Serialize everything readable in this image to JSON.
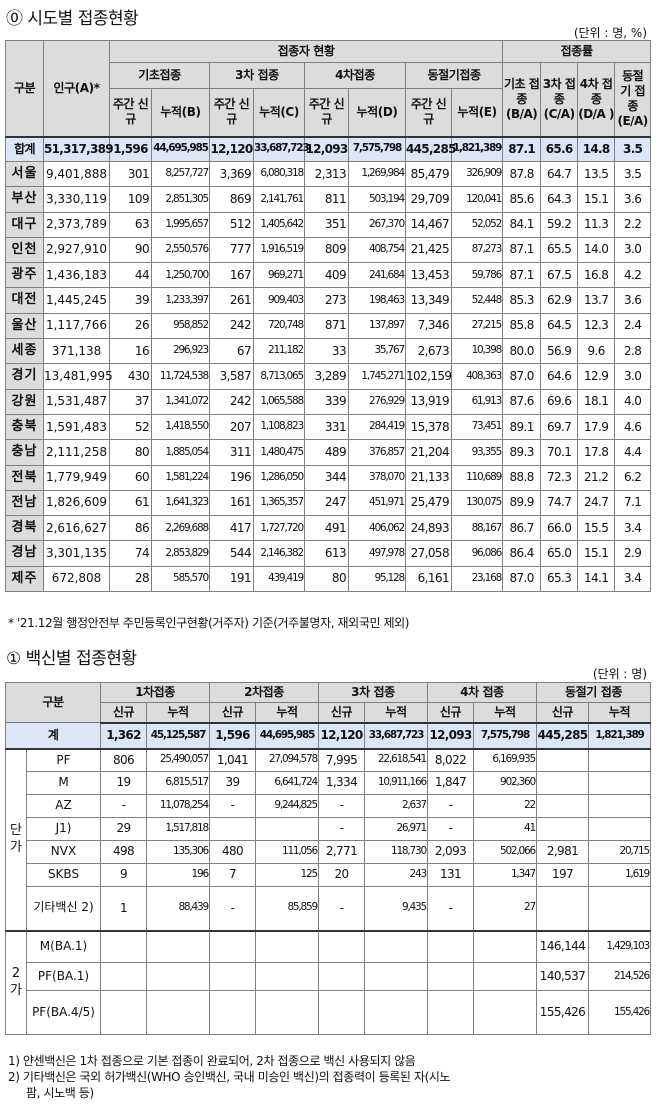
{
  "section1": {
    "title": "⓪ 시도별 접종현황",
    "unit": "(단위 : 명, %)",
    "headers": {
      "gubun": "구분",
      "population": "인구(A)*",
      "status_group": "접종자 현황",
      "rate_group": "접종률",
      "basic": "기초접종",
      "dose3": "3차 접종",
      "dose4": "4차접종",
      "winter": "동절기접종",
      "weekly_new": "주간 신규",
      "cum_b": "누적(B)",
      "cum_c": "누적(C)",
      "cum_d": "누적(D)",
      "cum_e": "누적(E)",
      "rate_basic": "기초 접종 (B/A)",
      "rate_3": "3차 접종 (C/A)",
      "rate_4": "4차 접종 (D/A )",
      "rate_w": "동절 기 접종 (E/A)"
    },
    "total": [
      "합계",
      "51,317,389",
      "1,596",
      "44,695,985",
      "12,120",
      "33,687,723",
      "12,093",
      "7,575,798",
      "445,285",
      "1,821,389",
      "87.1",
      "65.6",
      "14.8",
      "3.5"
    ],
    "rows": [
      [
        "서울",
        "9,401,888",
        "301",
        "8,257,727",
        "3,369",
        "6,080,318",
        "2,313",
        "1,269,984",
        "85,479",
        "326,909",
        "87.8",
        "64.7",
        "13.5",
        "3.5"
      ],
      [
        "부산",
        "3,330,119",
        "109",
        "2,851,305",
        "869",
        "2,141,761",
        "811",
        "503,194",
        "29,709",
        "120,041",
        "85.6",
        "64.3",
        "15.1",
        "3.6"
      ],
      [
        "대구",
        "2,373,789",
        "63",
        "1,995,657",
        "512",
        "1,405,642",
        "351",
        "267,370",
        "14,467",
        "52,052",
        "84.1",
        "59.2",
        "11.3",
        "2.2"
      ],
      [
        "인천",
        "2,927,910",
        "90",
        "2,550,576",
        "777",
        "1,916,519",
        "809",
        "408,754",
        "21,425",
        "87,273",
        "87.1",
        "65.5",
        "14.0",
        "3.0"
      ],
      [
        "광주",
        "1,436,183",
        "44",
        "1,250,700",
        "167",
        "969,271",
        "409",
        "241,684",
        "13,453",
        "59,786",
        "87.1",
        "67.5",
        "16.8",
        "4.2"
      ],
      [
        "대전",
        "1,445,245",
        "39",
        "1,233,397",
        "261",
        "909,403",
        "273",
        "198,463",
        "13,349",
        "52,448",
        "85.3",
        "62.9",
        "13.7",
        "3.6"
      ],
      [
        "울산",
        "1,117,766",
        "26",
        "958,852",
        "242",
        "720,748",
        "871",
        "137,897",
        "7,346",
        "27,215",
        "85.8",
        "64.5",
        "12.3",
        "2.4"
      ],
      [
        "세종",
        "371,138",
        "16",
        "296,923",
        "67",
        "211,182",
        "33",
        "35,767",
        "2,673",
        "10,398",
        "80.0",
        "56.9",
        "9.6",
        "2.8"
      ],
      [
        "경기",
        "13,481,995",
        "430",
        "11,724,538",
        "3,587",
        "8,713,065",
        "3,289",
        "1,745,271",
        "102,159",
        "408,363",
        "87.0",
        "64.6",
        "12.9",
        "3.0"
      ],
      [
        "강원",
        "1,531,487",
        "37",
        "1,341,072",
        "242",
        "1,065,588",
        "339",
        "276,929",
        "13,919",
        "61,913",
        "87.6",
        "69.6",
        "18.1",
        "4.0"
      ],
      [
        "충북",
        "1,591,483",
        "52",
        "1,418,550",
        "207",
        "1,108,823",
        "331",
        "284,419",
        "15,378",
        "73,451",
        "89.1",
        "69.7",
        "17.9",
        "4.6"
      ],
      [
        "충남",
        "2,111,258",
        "80",
        "1,885,054",
        "311",
        "1,480,475",
        "489",
        "376,857",
        "21,204",
        "93,355",
        "89.3",
        "70.1",
        "17.8",
        "4.4"
      ],
      [
        "전북",
        "1,779,949",
        "60",
        "1,581,224",
        "196",
        "1,286,050",
        "344",
        "378,070",
        "21,133",
        "110,689",
        "88.8",
        "72.3",
        "21.2",
        "6.2"
      ],
      [
        "전남",
        "1,826,609",
        "61",
        "1,641,323",
        "161",
        "1,365,357",
        "247",
        "451,971",
        "25,479",
        "130,075",
        "89.9",
        "74.7",
        "24.7",
        "7.1"
      ],
      [
        "경북",
        "2,616,627",
        "86",
        "2,269,688",
        "417",
        "1,727,720",
        "491",
        "406,062",
        "24,893",
        "88,167",
        "86.7",
        "66.0",
        "15.5",
        "3.4"
      ],
      [
        "경남",
        "3,301,135",
        "74",
        "2,853,829",
        "544",
        "2,146,382",
        "613",
        "497,978",
        "27,058",
        "96,086",
        "86.4",
        "65.0",
        "15.1",
        "2.9"
      ],
      [
        "제주",
        "672,808",
        "28",
        "585,570",
        "191",
        "439,419",
        "80",
        "95,128",
        "6,161",
        "23,168",
        "87.0",
        "65.3",
        "14.1",
        "3.4"
      ]
    ],
    "note": "* '21.12월 행정안전부 주민등록인구현황(거주자) 기준(거주불명자, 재외국민 제외)"
  },
  "section2": {
    "title": "① 백신별 접종현황",
    "unit": "(단위 : 명)",
    "headers": {
      "gubun": "구분",
      "dose1": "1차접종",
      "dose2": "2차접종",
      "dose3": "3차 접종",
      "dose4": "4차 접종",
      "winter": "동절기 접종",
      "new": "신규",
      "cum": "누적"
    },
    "total": [
      "계",
      "1,362",
      "45,125,587",
      "1,596",
      "44,695,985",
      "12,120",
      "33,687,723",
      "12,093",
      "7,575,798",
      "445,285",
      "1,821,389"
    ],
    "group1_label": "단 가",
    "group1": [
      [
        "PF",
        "806",
        "25,490,057",
        "1,041",
        "27,094,578",
        "7,995",
        "22,618,541",
        "8,022",
        "6,169,935",
        "",
        ""
      ],
      [
        "M",
        "19",
        "6,815,517",
        "39",
        "6,641,724",
        "1,334",
        "10,911,166",
        "1,847",
        "902,360",
        "",
        ""
      ],
      [
        "AZ",
        "-",
        "11,078,254",
        "-",
        "9,244,825",
        "-",
        "2,637",
        "-",
        "22",
        "",
        ""
      ],
      [
        "J1)",
        "29",
        "1,517,818",
        "",
        "",
        "-",
        "26,971",
        "-",
        "41",
        "",
        ""
      ],
      [
        "NVX",
        "498",
        "135,306",
        "480",
        "111,056",
        "2,771",
        "118,730",
        "2,093",
        "502,066",
        "2,981",
        "20,715"
      ],
      [
        "SKBS",
        "9",
        "196",
        "7",
        "125",
        "20",
        "243",
        "131",
        "1,347",
        "197",
        "1,619"
      ],
      [
        "기타백신 2)",
        "1",
        "88,439",
        "-",
        "85,859",
        "-",
        "9,435",
        "-",
        "27",
        "",
        ""
      ]
    ],
    "group2_label": "2 가",
    "group2": [
      [
        "M(BA.1)",
        "",
        "",
        "",
        "",
        "",
        "",
        "",
        "",
        "146,144",
        "1,429,103"
      ],
      [
        "PF(BA.1)",
        "",
        "",
        "",
        "",
        "",
        "",
        "",
        "",
        "140,537",
        "214,526"
      ],
      [
        "PF(BA.4/5)",
        "",
        "",
        "",
        "",
        "",
        "",
        "",
        "",
        "155,426",
        "155,426"
      ]
    ],
    "notes": [
      "1) 얀센백신은 1차 접종으로 기본 접종이 완료되어, 2차 접종으로 백신 사용되지 않음",
      "2) 기타백신은 국외 허가백신(WHO 승인백신, 국내 미승인 백신)의 접종력이 등록된 자(시노",
      "팜, 시노백 등)"
    ]
  }
}
